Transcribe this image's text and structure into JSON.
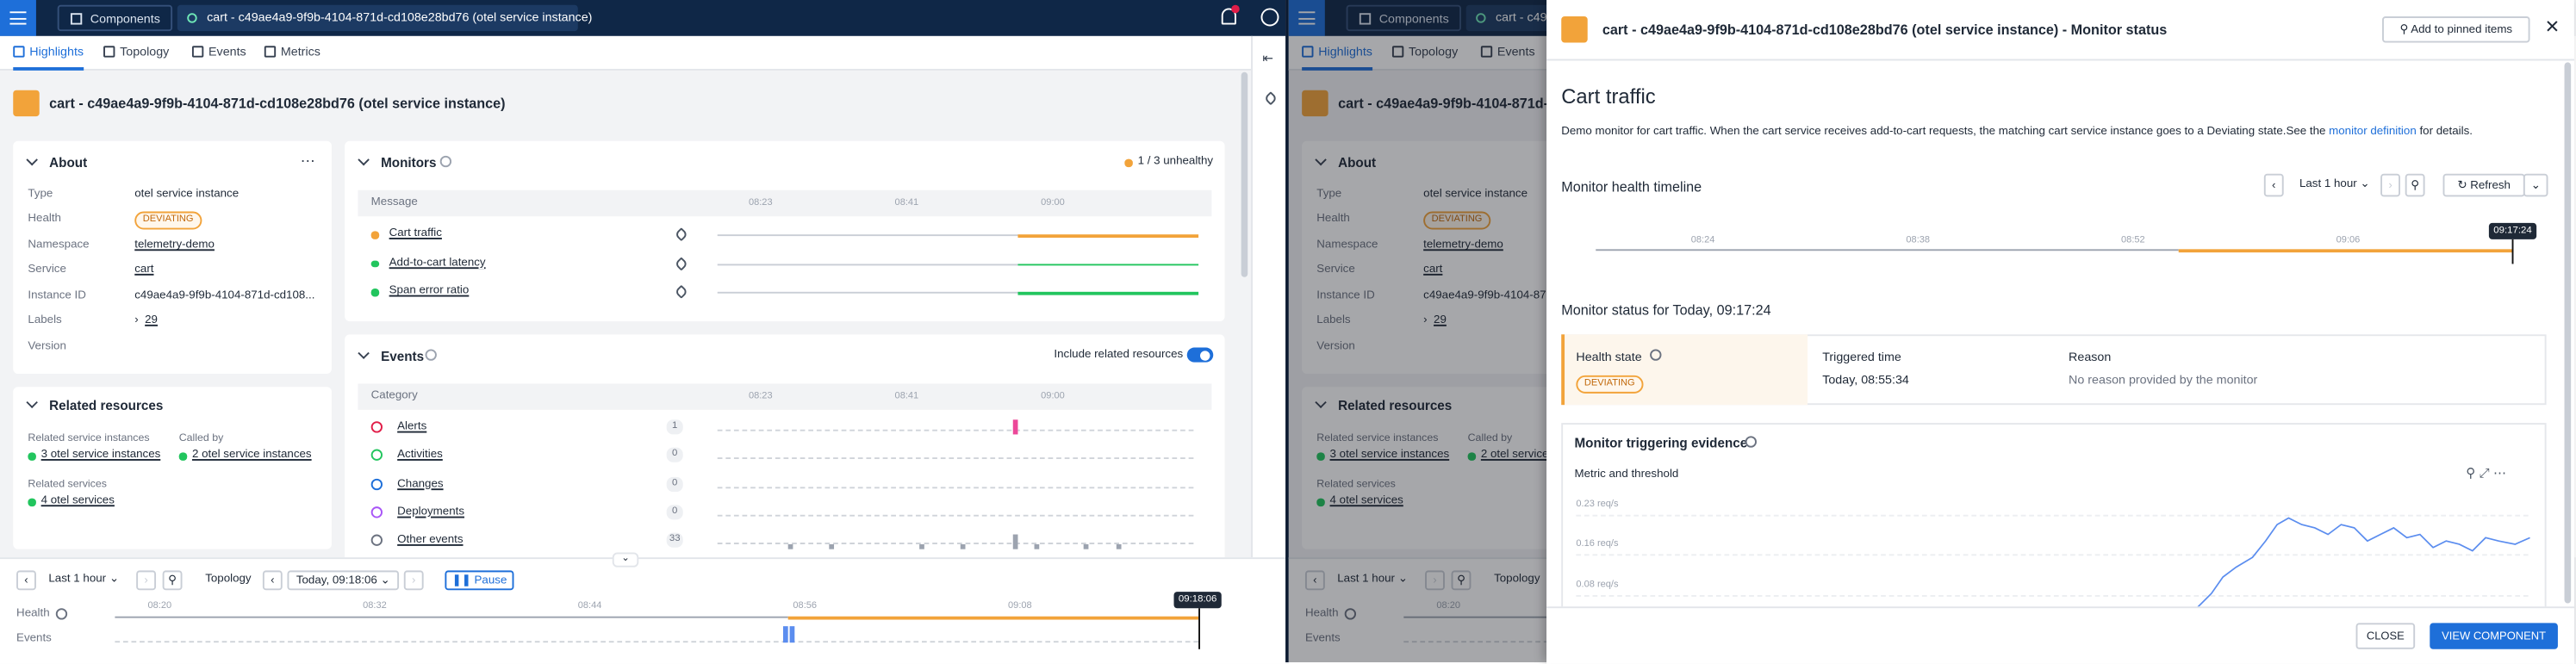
{
  "top_bar": {
    "components": "Components",
    "tab": "cart - c49ae4a9-9f9b-4104-871d-cd108e28bd76 (otel service instance)"
  },
  "tabs": [
    "Highlights",
    "Topology",
    "Events",
    "Metrics"
  ],
  "page_title": "cart - c49ae4a9-9f9b-4104-871d-cd108e28bd76 (otel service instance)",
  "about": {
    "title": "About",
    "fields": [
      {
        "label": "Type",
        "value": "otel service instance"
      },
      {
        "label": "Health",
        "value": "DEVIATING"
      },
      {
        "label": "Namespace",
        "value": "telemetry-demo"
      },
      {
        "label": "Service",
        "value": "cart"
      },
      {
        "label": "Instance ID",
        "value": "c49ae4a9-9f9b-4104-871d-cd108..."
      },
      {
        "label": "Labels",
        "value": 29
      },
      {
        "label": "Version"
      }
    ]
  },
  "related": {
    "title": "Related resources",
    "service_instances_label": "Related service instances",
    "service_instances": "3 otel service instances",
    "called_by_label": "Called by",
    "called_by": "2 otel service instances",
    "services_label": "Related services",
    "services": "4 otel services"
  },
  "monitors": {
    "title": "Monitors",
    "status": "1 / 3 unhealthy",
    "column": "Message",
    "times": [
      "08:23",
      "08:41",
      "09:00"
    ],
    "rows": [
      "Cart traffic",
      "Add-to-cart latency",
      "Span error ratio"
    ]
  },
  "events": {
    "title": "Events",
    "include": "Include related resources",
    "column": "Category",
    "times": [
      "08:23",
      "08:41",
      "09:00"
    ],
    "rows": [
      {
        "name": "Alerts",
        "count": 1
      },
      {
        "name": "Activities",
        "count": 0
      },
      {
        "name": "Changes",
        "count": 0
      },
      {
        "name": "Deployments",
        "count": 0
      },
      {
        "name": "Other events",
        "count": 33
      }
    ]
  },
  "bottom_bar": {
    "range": "Last 1 hour",
    "topology": "Topology",
    "time": "Today, 09:18:06",
    "pause": "Pause",
    "health": "Health",
    "events": "Events",
    "times": [
      "08:20",
      "08:32",
      "08:44",
      "08:56",
      "09:08"
    ],
    "cursor": "09:18:06"
  },
  "drawer": {
    "title": "cart - c49ae4a9-9f9b-4104-871d-cd108e28bd76 (otel service instance)  -  Monitor status",
    "pin": "Add to pinned items",
    "monitor_name": "Cart traffic",
    "description": "Demo monitor for cart traffic. When the cart service receives add-to-cart requests, the matching cart service instance goes to a Deviating state.See the ",
    "description_link": "monitor definition",
    "description_end": " for details.",
    "timeline_title": "Monitor health timeline",
    "range": "Last 1 hour",
    "refresh": "Refresh",
    "times": [
      "08:24",
      "08:38",
      "08:52",
      "09:06"
    ],
    "cursor": "09:17:24",
    "status_title": "Monitor status for Today, 09:17:24",
    "health_state_label": "Health state",
    "health_state": "DEVIATING",
    "triggered_label": "Triggered time",
    "triggered": "Today, 08:55:34",
    "reason_label": "Reason",
    "reason": "No reason provided by the monitor",
    "evidence_title": "Monitor triggering evidence",
    "metric_title": "Metric and threshold",
    "y_labels": [
      "0.23 req/s",
      "0.16 req/s",
      "0.08 req/s"
    ],
    "close": "CLOSE",
    "view": "VIEW COMPONENT"
  }
}
